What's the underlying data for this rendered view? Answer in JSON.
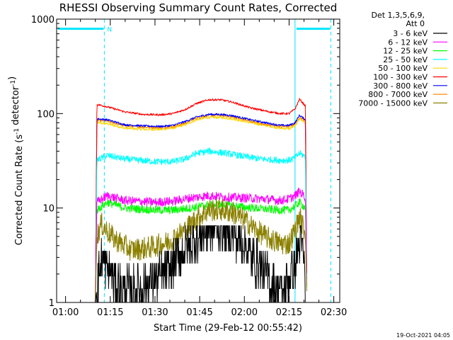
{
  "chart_data": {
    "type": "line",
    "title": "RHESSI Observing Summary Count Rates, Corrected",
    "ylabel": "Corrected Count Rate (s^-1 detector^-1)",
    "xlabel": "Start Time (29-Feb-12 00:55:42)",
    "y_scale": "log",
    "ylim": [
      1,
      1000
    ],
    "y_ticks": [
      {
        "value": 1,
        "label": "1"
      },
      {
        "value": 10,
        "label": "10"
      },
      {
        "value": 100,
        "label": "100"
      },
      {
        "value": 1000,
        "label": "1000"
      }
    ],
    "xlim_minutes": [
      -3,
      92
    ],
    "x_ticks": [
      {
        "minute": 0,
        "label": "01:00"
      },
      {
        "minute": 15,
        "label": "01:15"
      },
      {
        "minute": 30,
        "label": "01:30"
      },
      {
        "minute": 45,
        "label": "01:45"
      },
      {
        "minute": 60,
        "label": "02:00"
      },
      {
        "minute": 75,
        "label": "02:15"
      },
      {
        "minute": 90,
        "label": "02:30"
      }
    ],
    "legend_header": [
      "Det 1,3,5,6,9,",
      "Att 0"
    ],
    "legend_position": "right",
    "night_markers": {
      "color": "#00e5ff",
      "bar_value": 790,
      "n_label": "N",
      "solid_minutes": [
        -3,
        77
      ],
      "dashed_minutes": [
        13,
        89
      ],
      "bars": [
        [
          -3,
          13
        ],
        [
          77,
          89
        ]
      ]
    },
    "data_window_minutes": [
      10,
      81
    ],
    "series": [
      {
        "name": "3 - 6 keV",
        "color": "#000000",
        "noise": 0.55,
        "points": [
          [
            10,
            1.0
          ],
          [
            10.6,
            1.5
          ],
          [
            12,
            2.8
          ],
          [
            17,
            1.6
          ],
          [
            22,
            1.3
          ],
          [
            28,
            1.6
          ],
          [
            34,
            2.1
          ],
          [
            40,
            3.6
          ],
          [
            45,
            5.2
          ],
          [
            50,
            6.2
          ],
          [
            55,
            5.8
          ],
          [
            60,
            4.2
          ],
          [
            64,
            2.6
          ],
          [
            69,
            1.6
          ],
          [
            73,
            1.3
          ],
          [
            75,
            1.7
          ],
          [
            77,
            2.5
          ],
          [
            78.5,
            4.2
          ],
          [
            80,
            3.2
          ],
          [
            80.5,
            1.0
          ]
        ]
      },
      {
        "name": "6 - 12 keV",
        "color": "#ff00ff",
        "noise": 0.11,
        "points": [
          [
            10,
            1.0
          ],
          [
            10.5,
            11.5
          ],
          [
            14,
            13.5
          ],
          [
            20,
            12.0
          ],
          [
            30,
            11.5
          ],
          [
            36,
            11.8
          ],
          [
            42,
            12.8
          ],
          [
            48,
            13.5
          ],
          [
            54,
            13.0
          ],
          [
            60,
            12.8
          ],
          [
            66,
            12.5
          ],
          [
            72,
            12.0
          ],
          [
            75,
            12.5
          ],
          [
            77,
            13.5
          ],
          [
            78.5,
            15.0
          ],
          [
            80.5,
            13.0
          ],
          [
            81,
            1.0
          ]
        ]
      },
      {
        "name": "12 - 25 keV",
        "color": "#00ff00",
        "noise": 0.1,
        "points": [
          [
            10,
            1.0
          ],
          [
            10.5,
            9.5
          ],
          [
            14,
            11.5
          ],
          [
            20,
            10.0
          ],
          [
            30,
            9.5
          ],
          [
            36,
            9.5
          ],
          [
            42,
            10.0
          ],
          [
            48,
            10.8
          ],
          [
            54,
            10.8
          ],
          [
            60,
            10.2
          ],
          [
            66,
            9.8
          ],
          [
            72,
            9.5
          ],
          [
            75,
            9.5
          ],
          [
            77,
            10.5
          ],
          [
            78.5,
            11.5
          ],
          [
            80.5,
            10.0
          ],
          [
            81,
            1.0
          ]
        ]
      },
      {
        "name": "25 - 50 keV",
        "color": "#00ffff",
        "noise": 0.08,
        "points": [
          [
            10,
            1.0
          ],
          [
            10.5,
            32
          ],
          [
            14,
            36
          ],
          [
            20,
            33
          ],
          [
            30,
            31
          ],
          [
            36,
            31
          ],
          [
            40,
            33
          ],
          [
            44,
            38
          ],
          [
            48,
            40
          ],
          [
            54,
            38
          ],
          [
            60,
            35
          ],
          [
            66,
            33
          ],
          [
            72,
            32
          ],
          [
            75,
            32
          ],
          [
            77,
            34
          ],
          [
            78.5,
            38
          ],
          [
            80.5,
            35
          ],
          [
            81,
            1.0
          ]
        ]
      },
      {
        "name": "50 - 100 keV",
        "color": "#ffd700",
        "noise": 0.03,
        "points": [
          [
            10,
            1.0
          ],
          [
            10.5,
            80
          ],
          [
            14,
            78
          ],
          [
            20,
            70
          ],
          [
            26,
            68
          ],
          [
            32,
            68
          ],
          [
            36,
            70
          ],
          [
            40,
            76
          ],
          [
            44,
            86
          ],
          [
            48,
            91
          ],
          [
            52,
            91
          ],
          [
            56,
            88
          ],
          [
            62,
            80
          ],
          [
            68,
            74
          ],
          [
            72,
            70
          ],
          [
            75,
            69
          ],
          [
            77,
            74
          ],
          [
            78.5,
            88
          ],
          [
            80.5,
            80
          ],
          [
            81,
            1.0
          ]
        ]
      },
      {
        "name": "100 - 300 keV",
        "color": "#ff0000",
        "noise": 0.025,
        "points": [
          [
            10,
            1.0
          ],
          [
            10.5,
            125
          ],
          [
            14,
            118
          ],
          [
            20,
            104
          ],
          [
            26,
            98
          ],
          [
            32,
            97
          ],
          [
            36,
            100
          ],
          [
            40,
            110
          ],
          [
            44,
            128
          ],
          [
            48,
            140
          ],
          [
            52,
            140
          ],
          [
            56,
            132
          ],
          [
            62,
            115
          ],
          [
            68,
            105
          ],
          [
            72,
            100
          ],
          [
            75,
            100
          ],
          [
            77,
            112
          ],
          [
            78.5,
            142
          ],
          [
            80.5,
            120
          ],
          [
            81,
            1.0
          ]
        ]
      },
      {
        "name": "300 - 800 keV",
        "color": "#0000ff",
        "noise": 0.025,
        "points": [
          [
            10,
            1.0
          ],
          [
            10.5,
            88
          ],
          [
            14,
            86
          ],
          [
            20,
            76
          ],
          [
            26,
            74
          ],
          [
            32,
            73
          ],
          [
            36,
            75
          ],
          [
            40,
            82
          ],
          [
            44,
            92
          ],
          [
            48,
            98
          ],
          [
            52,
            98
          ],
          [
            56,
            95
          ],
          [
            62,
            86
          ],
          [
            68,
            79
          ],
          [
            72,
            75
          ],
          [
            75,
            75
          ],
          [
            77,
            80
          ],
          [
            78.5,
            96
          ],
          [
            80.5,
            86
          ],
          [
            81,
            1.0
          ]
        ]
      },
      {
        "name": "800 - 7000 keV",
        "color": "#ff8c00",
        "noise": 0.03,
        "points": [
          [
            10,
            1.0
          ],
          [
            10.5,
            85
          ],
          [
            14,
            83
          ],
          [
            20,
            74
          ],
          [
            26,
            72
          ],
          [
            32,
            71
          ],
          [
            36,
            73
          ],
          [
            40,
            79
          ],
          [
            44,
            90
          ],
          [
            48,
            96
          ],
          [
            52,
            96
          ],
          [
            56,
            92
          ],
          [
            62,
            83
          ],
          [
            68,
            76
          ],
          [
            72,
            73
          ],
          [
            75,
            73
          ],
          [
            77,
            78
          ],
          [
            78.5,
            92
          ],
          [
            80.5,
            84
          ],
          [
            81,
            1.0
          ]
        ]
      },
      {
        "name": "7000 - 15000 keV",
        "color": "#8b8000",
        "noise": 0.28,
        "points": [
          [
            10,
            1.0
          ],
          [
            10.5,
            5.0
          ],
          [
            12,
            6.8
          ],
          [
            16,
            4.8
          ],
          [
            22,
            3.6
          ],
          [
            28,
            3.8
          ],
          [
            34,
            4.3
          ],
          [
            40,
            5.8
          ],
          [
            44,
            7.8
          ],
          [
            48,
            9.5
          ],
          [
            52,
            9.6
          ],
          [
            56,
            9.0
          ],
          [
            60,
            7.5
          ],
          [
            64,
            5.8
          ],
          [
            68,
            4.8
          ],
          [
            72,
            4.2
          ],
          [
            75,
            4.2
          ],
          [
            77,
            5.8
          ],
          [
            78.5,
            8.0
          ],
          [
            80.5,
            5.5
          ],
          [
            81,
            1.0
          ]
        ]
      }
    ],
    "timestamp": "19-Oct-2021 04:05"
  }
}
